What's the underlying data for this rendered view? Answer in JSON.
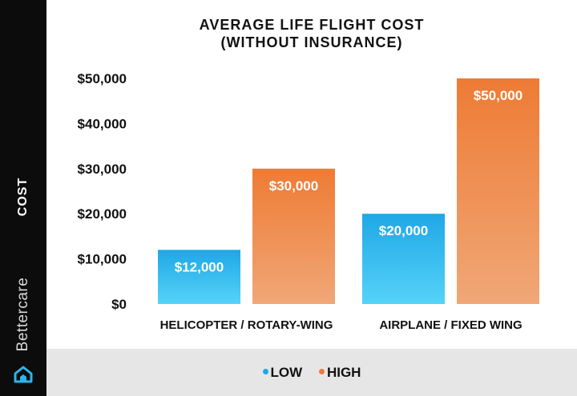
{
  "chart_data": {
    "type": "bar",
    "title": [
      "AVERAGE LIFE FLIGHT COST",
      "(WITHOUT INSURANCE)"
    ],
    "ylabel": "COST",
    "xlabel": "",
    "categories": [
      "HELICOPTER / ROTARY-WING",
      "AIRPLANE / FIXED WING"
    ],
    "series": [
      {
        "name": "LOW",
        "values": [
          12000,
          20000
        ],
        "data_labels": [
          "$12,000",
          "$20,000"
        ],
        "color_top": "#1fa7e6",
        "color_bottom": "#55d3f8"
      },
      {
        "name": "HIGH",
        "values": [
          30000,
          50000
        ],
        "data_labels": [
          "$30,000",
          "$50,000"
        ],
        "color_top": "#ee7b34",
        "color_bottom": "#f0a777"
      }
    ],
    "ylim": [
      0,
      50000
    ],
    "yticks": [
      0,
      10000,
      20000,
      30000,
      40000,
      50000
    ],
    "ytick_labels": [
      "$0",
      "$10,000",
      "$20,000",
      "$30,000",
      "$40,000",
      "$50,000"
    ],
    "grid": false,
    "legend_position": "bottom"
  },
  "brand": "Bettercare",
  "colors": {
    "sidebar": "#0c0c0c",
    "legend_background": "#e6e6e6"
  }
}
